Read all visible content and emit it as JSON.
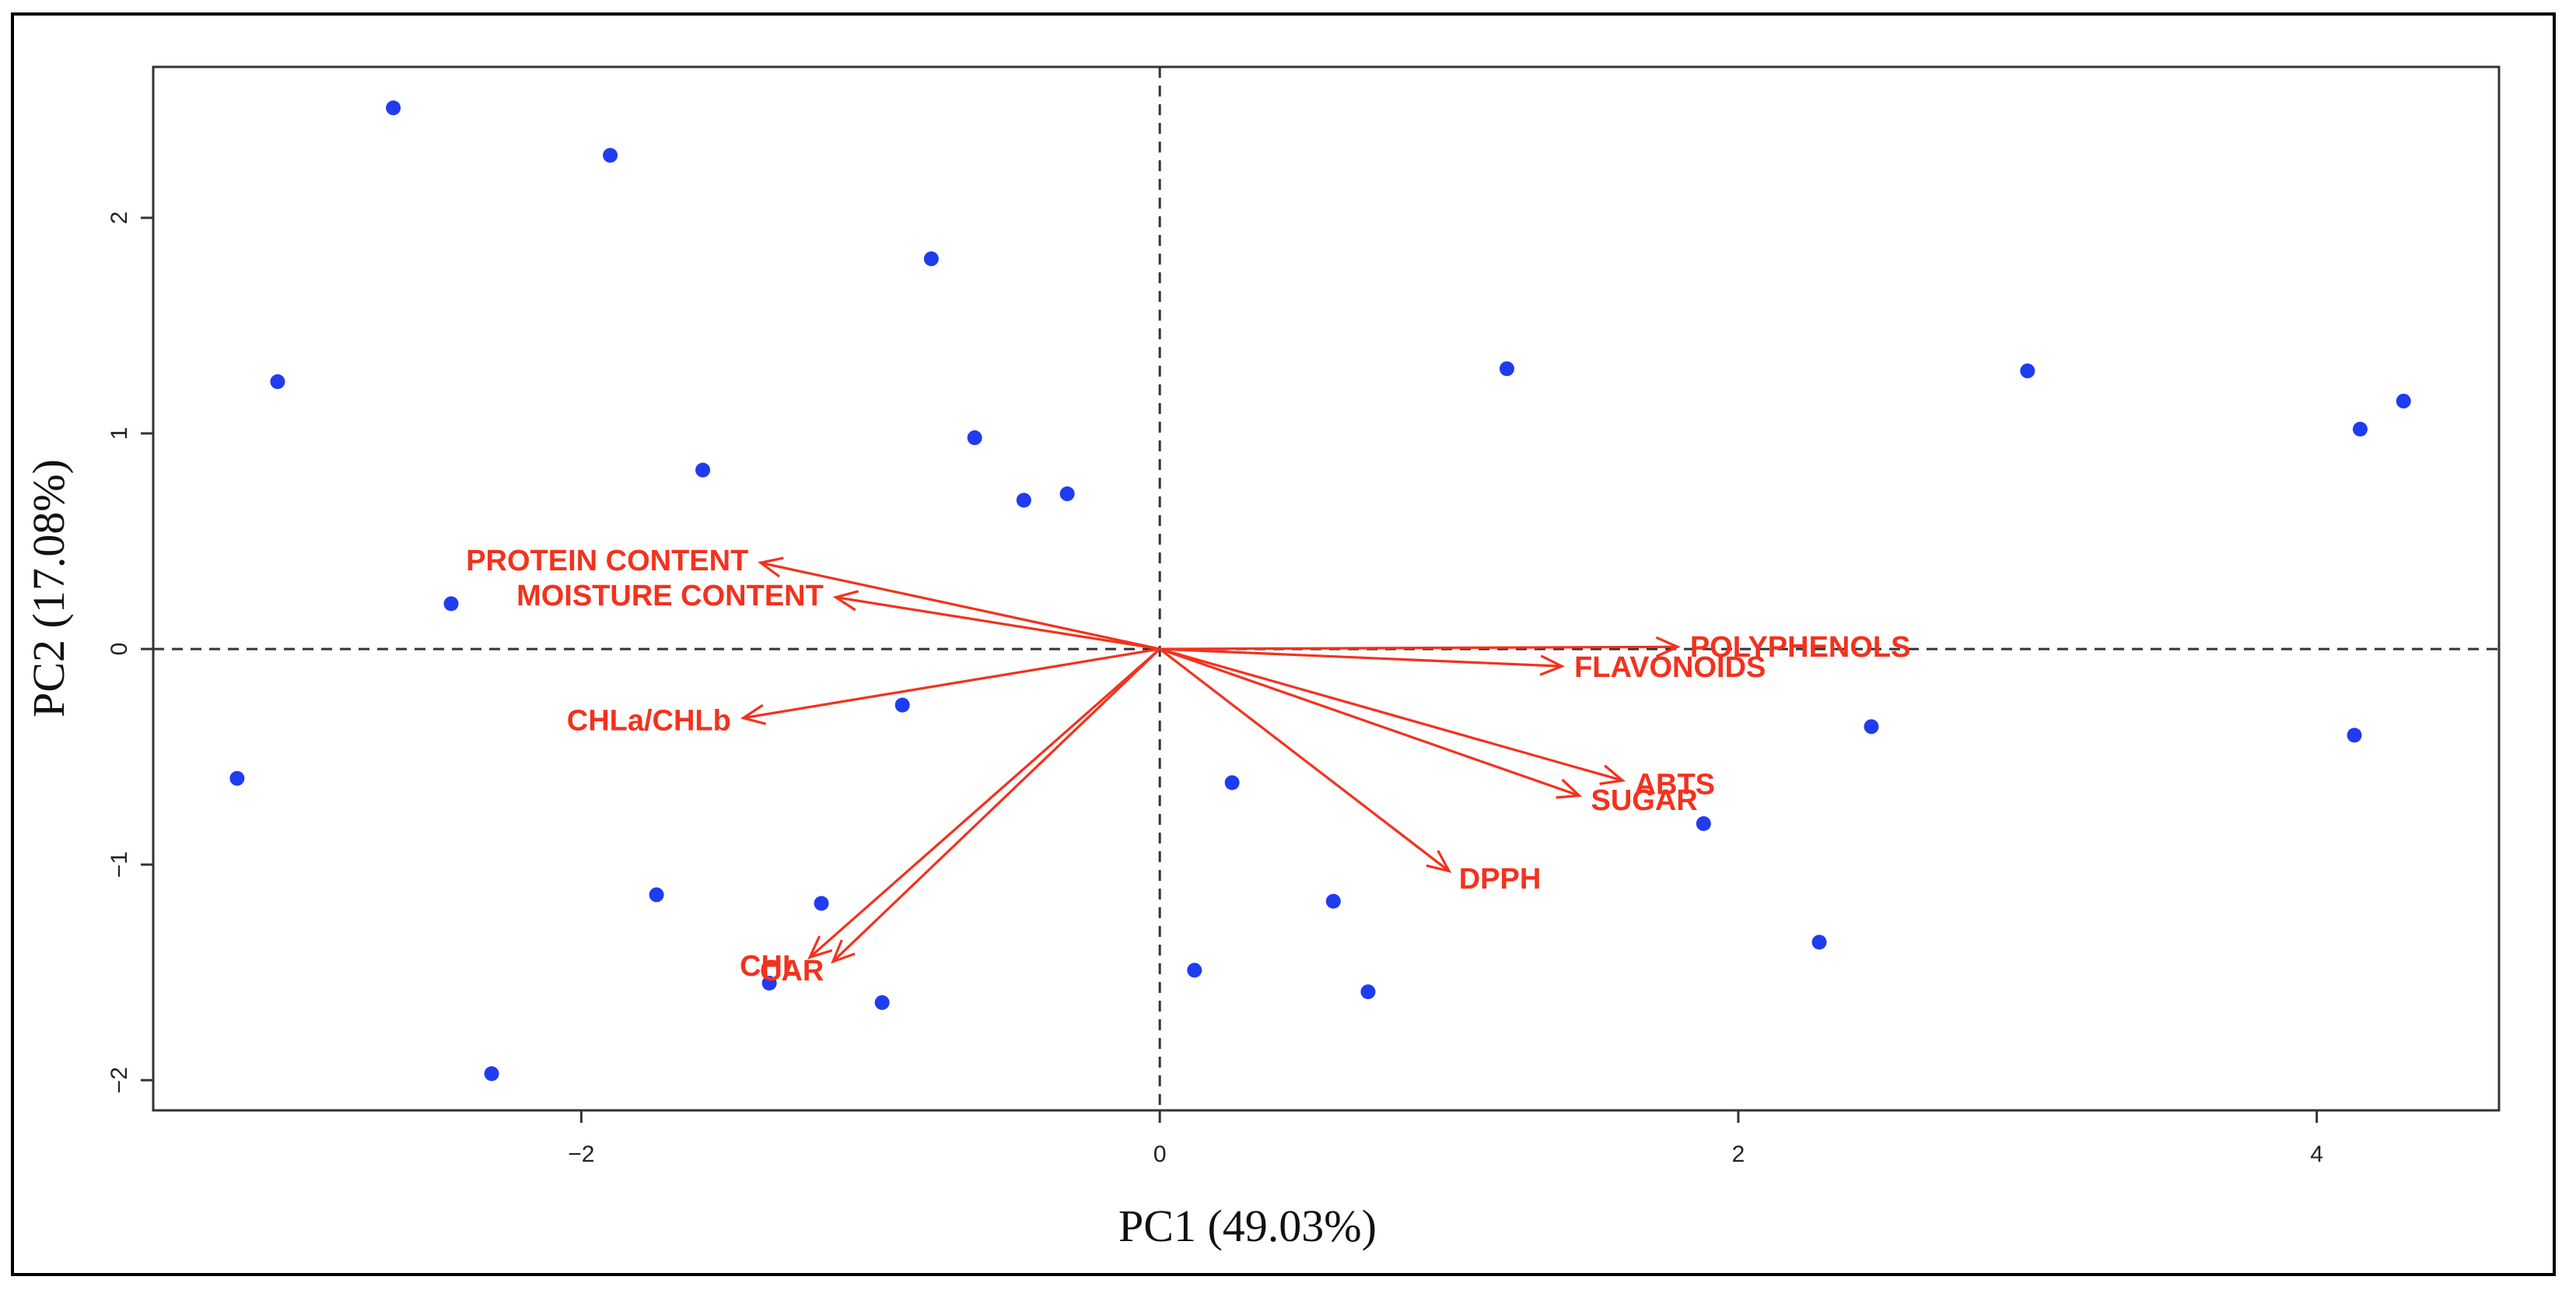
{
  "colors": {
    "points": "#1f3cf0",
    "vectors": "#f2321e",
    "axis": "#333333",
    "background": "#ffffff"
  },
  "chart_data": {
    "type": "scatter",
    "subtype": "pca-biplot",
    "xlabel": "PC1 (49.03%)",
    "ylabel": "PC2 (17.08%)",
    "xlim": [
      -3.48,
      4.63
    ],
    "ylim": [
      -2.14,
      2.7
    ],
    "x_ticks": [
      -2,
      0,
      2,
      4
    ],
    "y_ticks": [
      -2,
      -1,
      0,
      1,
      2
    ],
    "x_tick_labels": [
      "−2",
      "0",
      "2",
      "4"
    ],
    "y_tick_labels": [
      "−2",
      "−1",
      "0",
      "1",
      "2"
    ],
    "reference_lines": {
      "x": 0,
      "y": 0,
      "style": "dashed"
    },
    "points": [
      {
        "x": -2.65,
        "y": 2.51
      },
      {
        "x": -1.9,
        "y": 2.29
      },
      {
        "x": -0.79,
        "y": 1.81
      },
      {
        "x": -3.05,
        "y": 1.24
      },
      {
        "x": -0.64,
        "y": 0.98
      },
      {
        "x": -1.58,
        "y": 0.83
      },
      {
        "x": -0.47,
        "y": 0.69
      },
      {
        "x": -0.32,
        "y": 0.72
      },
      {
        "x": -2.45,
        "y": 0.21
      },
      {
        "x": -0.89,
        "y": -0.26
      },
      {
        "x": -3.19,
        "y": -0.6
      },
      {
        "x": -1.74,
        "y": -1.14
      },
      {
        "x": -1.17,
        "y": -1.18
      },
      {
        "x": -1.35,
        "y": -1.55
      },
      {
        "x": -0.96,
        "y": -1.64
      },
      {
        "x": -2.31,
        "y": -1.97
      },
      {
        "x": 1.2,
        "y": 1.3
      },
      {
        "x": 3.0,
        "y": 1.29
      },
      {
        "x": 4.15,
        "y": 1.02
      },
      {
        "x": 4.3,
        "y": 1.15
      },
      {
        "x": 0.25,
        "y": -0.62
      },
      {
        "x": 0.6,
        "y": -1.17
      },
      {
        "x": 0.12,
        "y": -1.49
      },
      {
        "x": 0.72,
        "y": -1.59
      },
      {
        "x": 1.88,
        "y": -0.81
      },
      {
        "x": 2.46,
        "y": -0.36
      },
      {
        "x": 2.28,
        "y": -1.36
      },
      {
        "x": 4.13,
        "y": -0.4
      }
    ],
    "loadings": [
      {
        "name": "PROTEIN CONTENT",
        "x": -1.38,
        "y": 0.4
      },
      {
        "name": "MOISTURE CONTENT",
        "x": -1.12,
        "y": 0.24
      },
      {
        "name": "CHLa/CHLb",
        "x": -1.44,
        "y": -0.32
      },
      {
        "name": "POLYPHENOLS",
        "x": 1.79,
        "y": 0.01
      },
      {
        "name": "FLAVONOIDS",
        "x": 1.39,
        "y": -0.08
      },
      {
        "name": "ABTS",
        "x": 1.6,
        "y": -0.61
      },
      {
        "name": "SUGAR",
        "x": 1.45,
        "y": -0.68
      },
      {
        "name": "DPPH",
        "x": 1.0,
        "y": -1.03
      },
      {
        "name": "CHL",
        "x": -1.21,
        "y": -1.43
      },
      {
        "name": "CAR",
        "x": -1.13,
        "y": -1.45
      }
    ]
  }
}
